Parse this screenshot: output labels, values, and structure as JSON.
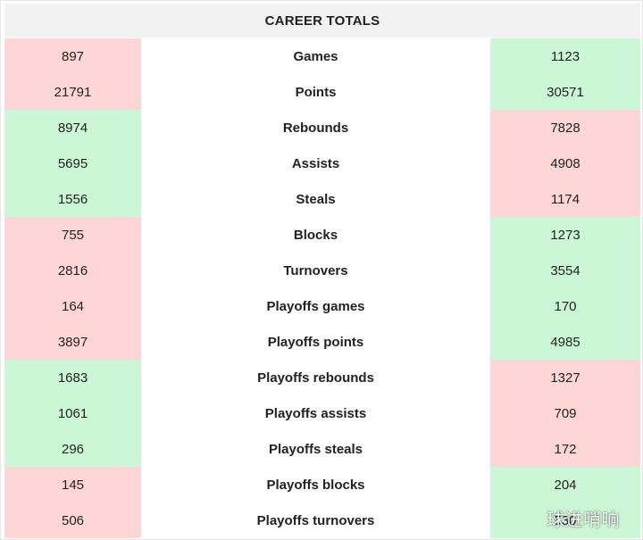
{
  "table": {
    "title": "CAREER TOTALS",
    "colors": {
      "red": "#ffd6d6",
      "green": "#ccf7d6",
      "header_bg": "#f2f2f2"
    },
    "rows": [
      {
        "stat": "Games",
        "left": "897",
        "right": "1123",
        "left_color": "red",
        "right_color": "green"
      },
      {
        "stat": "Points",
        "left": "21791",
        "right": "30571",
        "left_color": "red",
        "right_color": "green"
      },
      {
        "stat": "Rebounds",
        "left": "8974",
        "right": "7828",
        "left_color": "green",
        "right_color": "red"
      },
      {
        "stat": "Assists",
        "left": "5695",
        "right": "4908",
        "left_color": "green",
        "right_color": "red"
      },
      {
        "stat": "Steals",
        "left": "1556",
        "right": "1174",
        "left_color": "green",
        "right_color": "red"
      },
      {
        "stat": "Blocks",
        "left": "755",
        "right": "1273",
        "left_color": "red",
        "right_color": "green"
      },
      {
        "stat": "Turnovers",
        "left": "2816",
        "right": "3554",
        "left_color": "red",
        "right_color": "green"
      },
      {
        "stat": "Playoffs games",
        "left": "164",
        "right": "170",
        "left_color": "red",
        "right_color": "green"
      },
      {
        "stat": "Playoffs points",
        "left": "3897",
        "right": "4985",
        "left_color": "red",
        "right_color": "green"
      },
      {
        "stat": "Playoffs rebounds",
        "left": "1683",
        "right": "1327",
        "left_color": "green",
        "right_color": "red"
      },
      {
        "stat": "Playoffs assists",
        "left": "1061",
        "right": "709",
        "left_color": "green",
        "right_color": "red"
      },
      {
        "stat": "Playoffs steals",
        "left": "296",
        "right": "172",
        "left_color": "green",
        "right_color": "red"
      },
      {
        "stat": "Playoffs blocks",
        "left": "145",
        "right": "204",
        "left_color": "red",
        "right_color": "green"
      },
      {
        "stat": "Playoffs turnovers",
        "left": "506",
        "right": "530",
        "left_color": "red",
        "right_color": "green"
      }
    ]
  },
  "watermark": "球进哨响"
}
